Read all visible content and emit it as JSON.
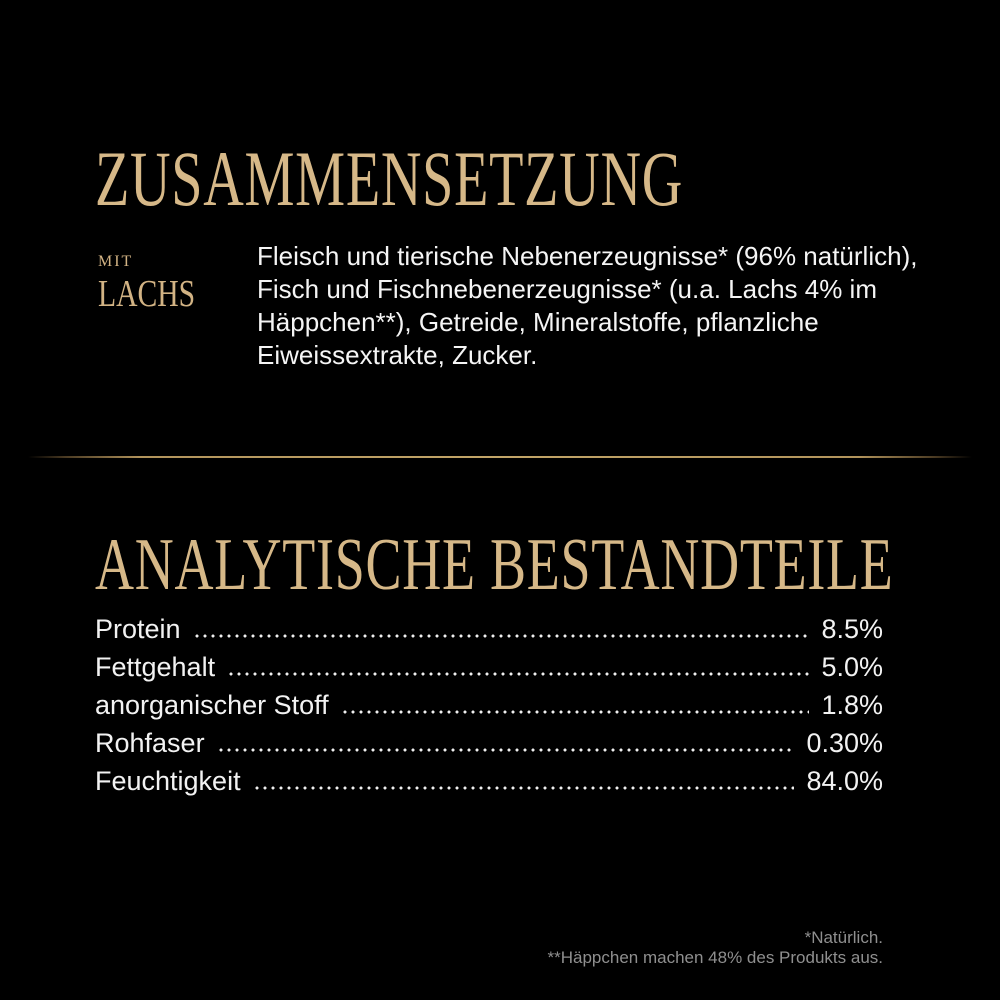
{
  "colors": {
    "background": "#000000",
    "accent_gold": "#d6b888",
    "divider_gold": "#c2a568",
    "body_text": "#f2f2f2",
    "footnote_gray": "#8f8f8f"
  },
  "composition": {
    "title": "ZUSAMMENSETZUNG",
    "variant_prefix": "MIT",
    "variant_name": "LACHS",
    "ingredients_lines": [
      "Fleisch und tierische Nebenerzeugnisse* (96% natürlich),",
      "Fisch und Fischnebenerzeugnisse* (u.a. Lachs 4% im",
      "Häppchen**), Getreide, Mineralstoffe, pflanzliche",
      "Eiweissextrakte, Zucker."
    ]
  },
  "analysis": {
    "title": "ANALYTISCHE BESTANDTEILE",
    "rows": [
      {
        "label": "Protein",
        "value": "8.5%"
      },
      {
        "label": "Fettgehalt",
        "value": "5.0%"
      },
      {
        "label": "anorganischer Stoff",
        "value": "1.8%"
      },
      {
        "label": "Rohfaser",
        "value": "0.30%"
      },
      {
        "label": "Feuchtigkeit",
        "value": "84.0%"
      }
    ]
  },
  "footnotes": [
    "*Natürlich.",
    "**Häppchen machen 48% des Produkts aus."
  ]
}
